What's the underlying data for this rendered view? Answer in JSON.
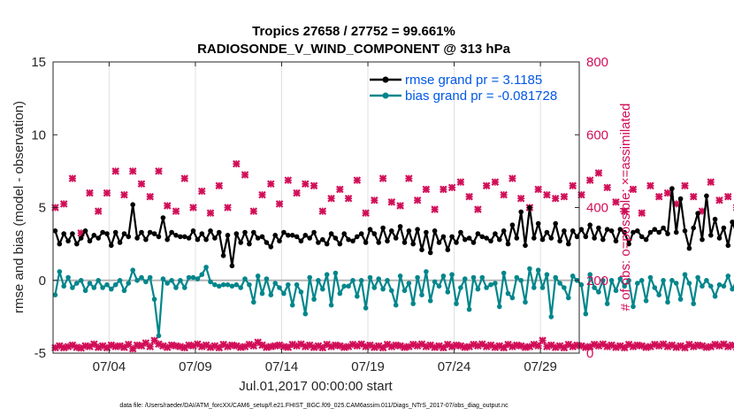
{
  "chart_data": {
    "type": "line",
    "title_line1": "Tropics 27658 / 27752 = 99.661%",
    "title_line2": "RADIOSONDE_V_WIND_COMPONENT @ 313 hPa",
    "xlabel": "Jul.01,2017 00:00:00 start",
    "ylabel_left": "rmse and bias (model - observation)",
    "ylabel_right": "# of obs: o=possible; ×=assimilated",
    "footnote": "data file: /Users/raeder/DAI/ATM_forcXX/CAM6_setup/f.e21.FHIST_BGC.f09_025.CAM6assim.011/Diags_NTrS_2017-07/obs_diag_output.nc",
    "ylim_left": [
      -5,
      15
    ],
    "yticks_left": [
      "-5",
      "0",
      "5",
      "10",
      "15"
    ],
    "ylim_right": [
      0,
      800
    ],
    "yticks_right": [
      "0",
      "200",
      "400",
      "600",
      "800"
    ],
    "xlim_days": [
      0.75,
      31.25
    ],
    "xticks": [
      {
        "day": 4,
        "label": "07/04"
      },
      {
        "day": 9,
        "label": "07/09"
      },
      {
        "day": 14,
        "label": "07/14"
      },
      {
        "day": 19,
        "label": "07/19"
      },
      {
        "day": 24,
        "label": "07/24"
      },
      {
        "day": 29,
        "label": "07/29"
      }
    ],
    "colors": {
      "rmse": "#000000",
      "bias": "#00868b",
      "obs": "#d10e58",
      "zero_line": "#b3b3b3",
      "grid": "#e0e0e0",
      "legend_text": "#0057e7"
    },
    "series": [
      {
        "name": "rmse grand pr = 3.1185",
        "axis": "left",
        "start_day": 0.875,
        "step_days": 0.25,
        "values": [
          3.4,
          2.5,
          3.2,
          2.7,
          3.2,
          2.5,
          2.9,
          3.4,
          2.7,
          3.1,
          2.9,
          3.3,
          3.2,
          2.4,
          3.3,
          2.6,
          3.2,
          3.0,
          5.2,
          2.9,
          3.3,
          2.8,
          3.3,
          3.2,
          3.0,
          4.3,
          2.8,
          3.3,
          3.1,
          3.0,
          3.0,
          2.9,
          3.4,
          2.8,
          3.2,
          2.8,
          3.4,
          2.9,
          3.3,
          1.7,
          3.1,
          1.0,
          3.2,
          2.6,
          3.3,
          2.5,
          3.3,
          2.9,
          3.0,
          2.6,
          2.3,
          3.1,
          2.7,
          3.3,
          3.1,
          3.1,
          3.0,
          2.7,
          3.1,
          2.9,
          3.3,
          2.6,
          2.8,
          2.5,
          3.2,
          2.9,
          2.5,
          3.2,
          2.8,
          2.7,
          3.0,
          3.2,
          2.6,
          3.5,
          3.2,
          2.6,
          3.6,
          2.7,
          3.4,
          2.9,
          3.7,
          2.6,
          3.4,
          2.5,
          3.5,
          2.1,
          3.3,
          1.9,
          3.4,
          2.6,
          3.0,
          2.1,
          3.0,
          2.6,
          3.3,
          2.8,
          2.9,
          2.6,
          3.2,
          3.0,
          2.9,
          2.7,
          3.2,
          2.8,
          3.4,
          2.5,
          3.8,
          2.9,
          4.7,
          2.4,
          5.0,
          2.9,
          3.9,
          2.8,
          3.3,
          2.9,
          3.9,
          2.7,
          3.4,
          2.5,
          3.4,
          3.0,
          3.5,
          3.0,
          3.8,
          2.9,
          3.6,
          2.8,
          3.5,
          3.4,
          2.7,
          3.5,
          3.3,
          2.5,
          3.3,
          3.4,
          3.0,
          2.8,
          3.3,
          3.5,
          3.3,
          3.6,
          3.2,
          6.3,
          3.3,
          5.6,
          3.4,
          2.2,
          3.6,
          4.6,
          2.8,
          5.8,
          3.1,
          4.2,
          2.9,
          3.6,
          2.4,
          4.0,
          3.2,
          3.6,
          3.0,
          3.3,
          2.8,
          3.4,
          3.0,
          2.6,
          3.3,
          2.6,
          3.4,
          2.7,
          2.8,
          3.7,
          3.3,
          3.4,
          2.8,
          3.8,
          3.3,
          4.2,
          2.7,
          4.8,
          1.4,
          4.0,
          3.0,
          5.3,
          2.9,
          3.3,
          2.9,
          3.7,
          3.2,
          3.1,
          3.4,
          3.2,
          3.4,
          4.4,
          3.6,
          4.4,
          3.9,
          2.8
        ],
        "display_points": false
      },
      {
        "name": "bias grand pr = -0.081728",
        "axis": "left",
        "start_day": 0.875,
        "step_days": 0.25,
        "values": [
          -1.0,
          0.6,
          -0.4,
          0.2,
          -0.5,
          -0.2,
          0.0,
          -0.7,
          -0.2,
          -0.5,
          0.0,
          -0.5,
          -0.3,
          -0.6,
          -0.3,
          0.0,
          -0.7,
          -0.2,
          0.7,
          0.0,
          0.2,
          -0.1,
          0.2,
          -1.3,
          -3.8,
          0.1,
          -0.2,
          0.0,
          -0.5,
          0.0,
          -0.5,
          0.2,
          0.2,
          0.1,
          0.4,
          0.9,
          -0.1,
          -0.3,
          -0.4,
          -0.3,
          -0.3,
          -0.4,
          -0.3,
          -0.5,
          0.1,
          -0.3,
          -1.5,
          0.3,
          -0.9,
          0.1,
          -1.0,
          -0.2,
          -0.5,
          -0.9,
          -0.3,
          -1.7,
          -0.3,
          -0.8,
          -2.3,
          0.2,
          -1.3,
          0.0,
          -0.6,
          0.4,
          -1.7,
          0.5,
          -0.9,
          -0.4,
          -0.4,
          0.0,
          -1.1,
          0.0,
          -1.9,
          0.2,
          -0.5,
          0.1,
          -0.6,
          0.0,
          -0.7,
          -1.7,
          0.3,
          -0.7,
          -0.2,
          -1.6,
          0.2,
          -1.0,
          0.6,
          -1.4,
          -0.1,
          -0.4,
          0.3,
          -0.8,
          0.4,
          -1.6,
          -0.5,
          0.1,
          -2.0,
          0.2,
          -0.6,
          0.2,
          -0.5,
          -0.3,
          -0.2,
          -1.8,
          0.5,
          -0.9,
          -1.2,
          0.2,
          0.0,
          -1.5,
          0.8,
          -0.5,
          0.7,
          -0.5,
          0.4,
          -2.5,
          0.2,
          -0.2,
          -0.5,
          -1.2,
          0.3,
          0.0,
          -0.3,
          -2.3,
          0.4,
          -0.5,
          -0.8,
          0.0,
          -1.6,
          0.0,
          -0.7,
          0.1,
          -0.4,
          0.0,
          -1.8,
          -0.2,
          0.0,
          -1.4,
          0.2,
          -0.5,
          -1.0,
          0.0,
          -1.5,
          0.0,
          -0.2,
          -1.3,
          0.4,
          -0.2,
          -1.6,
          0.2,
          -0.4,
          0.0,
          -0.4,
          -1.1,
          -0.3,
          -0.4,
          0.3,
          -0.6,
          0.0,
          -1.7,
          -0.2,
          -0.8,
          -1.6,
          0.2,
          -0.5,
          0.0,
          -1.5,
          0.7,
          -0.4,
          0.1,
          -1.0,
          0.1,
          -0.5,
          -1.7,
          0.1,
          -1.6,
          -0.3,
          -0.8,
          0.0,
          -1.0,
          -0.2,
          -0.6,
          -0.3,
          -0.7,
          -0.2,
          -1.4,
          0.3,
          -1.6,
          -0.3,
          -0.8,
          0.0,
          -0.4,
          0.0,
          -1.0,
          0.2,
          -0.2,
          1.4,
          -0.5,
          -0.9,
          -0.6
        ],
        "display_points": false
      },
      {
        "name": "obs possible (top)",
        "axis": "right",
        "marker": "cross",
        "start_day": 0.875,
        "step_days": 0.5,
        "values": [
          400,
          410,
          480,
          330,
          440,
          390,
          440,
          500,
          435,
          500,
          465,
          430,
          500,
          405,
          390,
          480,
          400,
          445,
          385,
          460,
          400,
          520,
          490,
          390,
          435,
          465,
          410,
          475,
          440,
          465,
          460,
          390,
          425,
          450,
          425,
          475,
          385,
          420,
          480,
          415,
          405,
          480,
          420,
          450,
          395,
          450,
          455,
          470,
          430,
          395,
          460,
          470,
          435,
          480,
          425,
          400,
          450,
          435,
          425,
          430,
          460,
          435,
          475,
          495,
          455,
          415,
          390,
          450,
          385,
          460,
          430,
          440,
          410,
          460,
          430,
          390,
          470,
          420,
          430,
          400,
          400,
          455,
          420,
          470,
          390,
          440,
          430,
          410,
          415,
          395,
          410,
          460,
          390,
          420,
          395,
          475,
          380,
          450,
          470,
          400,
          430,
          385,
          440,
          480,
          380,
          415,
          430,
          425,
          455,
          395,
          480,
          435,
          375,
          420,
          410,
          405,
          440,
          390,
          390,
          440,
          395,
          410,
          380,
          420,
          400,
          430,
          480,
          415,
          390,
          440,
          460,
          405,
          390,
          480,
          435,
          425,
          440,
          400,
          400,
          420,
          420,
          395,
          390,
          360,
          400,
          425,
          480,
          405,
          430,
          395
        ],
        "display_points": false
      },
      {
        "name": "obs assimilated (bottom)",
        "axis": "right",
        "marker": "cross",
        "start_day": 0.875,
        "step_days": 0.25,
        "values": [
          15,
          20,
          15,
          18,
          22,
          16,
          14,
          20,
          18,
          25,
          16,
          20,
          15,
          22,
          18,
          20,
          16,
          24,
          12,
          22,
          20,
          28,
          18,
          35,
          25,
          20,
          16,
          22,
          20,
          18,
          15,
          22,
          20,
          25,
          18,
          22,
          16,
          20,
          15,
          24,
          18,
          22,
          20,
          16,
          18,
          24,
          20,
          30,
          22,
          16,
          18,
          20,
          22,
          18,
          16,
          24,
          20,
          25,
          18,
          22,
          16,
          20,
          15,
          24,
          18,
          22,
          20,
          16,
          18,
          24,
          20,
          25,
          18,
          22,
          16,
          20,
          15,
          24,
          18,
          22,
          20,
          16,
          18,
          24,
          20,
          25,
          18,
          22,
          16,
          20,
          15,
          24,
          18,
          22,
          20,
          16,
          18,
          24,
          20,
          25,
          18,
          22,
          16,
          20,
          15,
          24,
          18,
          22,
          20,
          16,
          18,
          24,
          20,
          35,
          18,
          22,
          16,
          20,
          15,
          24,
          18,
          22,
          20,
          16,
          18,
          24,
          20,
          25,
          18,
          22,
          16,
          20,
          15,
          24,
          18,
          22,
          20,
          16,
          18,
          24,
          20,
          25,
          18,
          22,
          16,
          20,
          15,
          24,
          18,
          22,
          20,
          16,
          18,
          24,
          20,
          25,
          18,
          22,
          16,
          20,
          15,
          24,
          18,
          22,
          20,
          16,
          18,
          24,
          20,
          25,
          18,
          22,
          16,
          20,
          15,
          24,
          18,
          22,
          20,
          16,
          18,
          24,
          20,
          30,
          18,
          22,
          16,
          20,
          15,
          24,
          18,
          22,
          20,
          16,
          18,
          24,
          20,
          25,
          18,
          22,
          16,
          14,
          8,
          2
        ],
        "display_points": false
      }
    ]
  }
}
